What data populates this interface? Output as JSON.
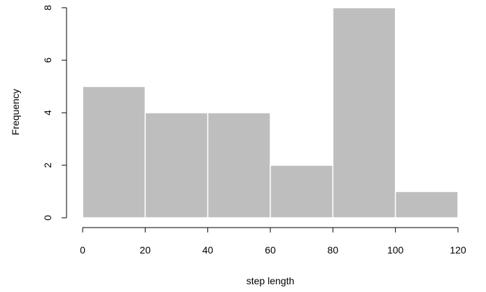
{
  "chart_data": {
    "type": "bar",
    "title": "",
    "xlabel": "step length",
    "ylabel": "Frequency",
    "bins": [
      {
        "from": 0,
        "to": 20,
        "value": 5
      },
      {
        "from": 20,
        "to": 40,
        "value": 4
      },
      {
        "from": 40,
        "to": 60,
        "value": 4
      },
      {
        "from": 60,
        "to": 80,
        "value": 2
      },
      {
        "from": 80,
        "to": 100,
        "value": 8
      },
      {
        "from": 100,
        "to": 120,
        "value": 1
      }
    ],
    "xlim": [
      0,
      120
    ],
    "ylim": [
      0,
      8
    ],
    "xticks": [
      "0",
      "20",
      "40",
      "60",
      "80",
      "100",
      "120"
    ],
    "yticks": [
      "0",
      "2",
      "4",
      "6",
      "8"
    ],
    "grid": false,
    "colors": {
      "bar_fill": "#bebebe",
      "bar_border": "#ffffff",
      "axis": "#000000"
    }
  }
}
